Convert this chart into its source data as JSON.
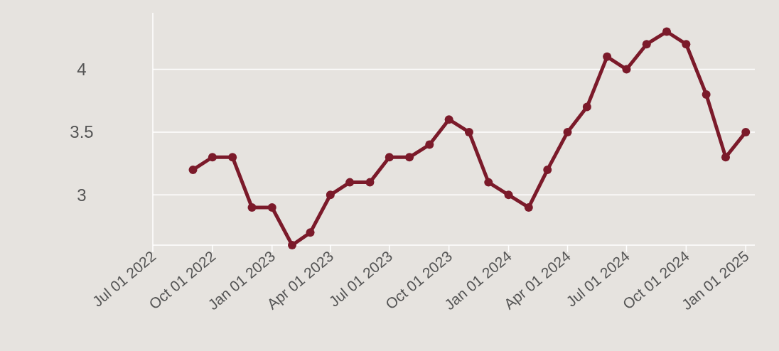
{
  "chart_data": {
    "type": "line",
    "x": [
      "2022-09",
      "2022-10",
      "2022-11",
      "2022-12",
      "2023-01",
      "2023-02",
      "2023-03",
      "2023-04",
      "2023-05",
      "2023-06",
      "2023-07",
      "2023-08",
      "2023-09",
      "2023-10",
      "2023-11",
      "2023-12",
      "2024-01",
      "2024-02",
      "2024-03",
      "2024-04",
      "2024-05",
      "2024-06",
      "2024-07",
      "2024-08",
      "2024-09",
      "2024-10",
      "2024-11",
      "2024-12",
      "2025-01"
    ],
    "series": [
      {
        "color": "#7b1a2a",
        "values": [
          3.2,
          3.3,
          3.3,
          2.9,
          2.9,
          2.6,
          2.7,
          3.0,
          3.1,
          3.1,
          3.3,
          3.3,
          3.4,
          3.6,
          3.5,
          3.1,
          3.0,
          2.9,
          3.2,
          3.5,
          3.7,
          4.1,
          4.0,
          4.2,
          4.3,
          4.2,
          3.8,
          3.3,
          3.5
        ]
      }
    ],
    "xlim": [
      "2022-07-01",
      "2025-01-15"
    ],
    "xticks": [
      {
        "value": "2022-07-01",
        "label": "Jul 01 2022"
      },
      {
        "value": "2022-10-01",
        "label": "Oct 01 2022"
      },
      {
        "value": "2023-01-01",
        "label": "Jan 01 2023"
      },
      {
        "value": "2023-04-01",
        "label": "Apr 01 2023"
      },
      {
        "value": "2023-07-01",
        "label": "Jul 01 2023"
      },
      {
        "value": "2023-10-01",
        "label": "Oct 01 2023"
      },
      {
        "value": "2024-01-01",
        "label": "Jan 01 2024"
      },
      {
        "value": "2024-04-01",
        "label": "Apr 01 2024"
      },
      {
        "value": "2024-07-01",
        "label": "Jul 01 2024"
      },
      {
        "value": "2024-10-01",
        "label": "Oct 01 2024"
      },
      {
        "value": "2025-01-01",
        "label": "Jan 01 2025"
      }
    ],
    "ylim": [
      2.6,
      4.45
    ],
    "yticks": [
      3,
      3.5,
      4
    ],
    "grid": "y",
    "marker": "circle",
    "line_style": "solid"
  }
}
